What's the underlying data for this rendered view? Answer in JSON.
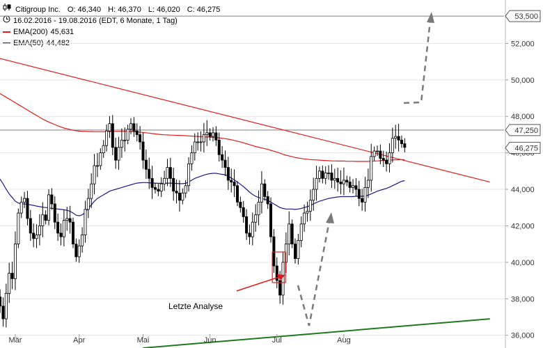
{
  "header": {
    "instrument": "Citigroup Inc.",
    "open_text": "O: 46,340",
    "high_text": "H: 46,370",
    "low_text": "L: 46,020",
    "close_text": "C: 46,275",
    "period_text": "16.02.2016 - 19.08.2016 (EDT, 6 Monate, 1 Tag)",
    "ema200_name": "EMA(200)",
    "ema200_value": "45,631",
    "ema50_name": "EMA(50)",
    "ema50_value": "44,482",
    "icons": [
      "candlestick-icon",
      "clock-icon"
    ]
  },
  "colors": {
    "ema200": "#e41b1b",
    "ema50": "#1a1a8c",
    "trendline_down": "#e41b1b",
    "trendline_up": "#1e7a1e",
    "arrow_dashed": "#7a7a7a",
    "highlight_box": "#e41b1b",
    "grid": "#e5e5e5",
    "hline": "#808080"
  },
  "chart_data": {
    "type": "candlestick",
    "x_tick_labels": [
      "Mär",
      "Apr",
      "Mai",
      "Jun",
      "Jul",
      "Aug"
    ],
    "x_tick_index": [
      8,
      29,
      50,
      72,
      94,
      116
    ],
    "y_tick_values": [
      36000,
      38000,
      40000,
      42000,
      44000,
      46000,
      48000,
      50000,
      52000
    ],
    "y_tick_labels": [
      "36,000",
      "38,000",
      "40,000",
      "42,000",
      "44,000",
      "46,000",
      "48,000",
      "50,000",
      "52,000"
    ],
    "ylim": [
      35300,
      54000
    ],
    "price_boxes": [
      {
        "label": "53,500",
        "value": 53500
      },
      {
        "label": "47,250",
        "value": 47250
      },
      {
        "label": "46,275",
        "value": 46275
      }
    ],
    "horizontal_lines": [
      53500,
      47250
    ],
    "close": [
      38.4,
      37.3,
      38.1,
      37.6,
      36.9,
      38.3,
      39.4,
      39.1,
      41.0,
      42.7,
      43.3,
      43.5,
      42.4,
      41.6,
      41.3,
      41.5,
      42.0,
      42.6,
      42.3,
      43.7,
      43.2,
      42.2,
      41.6,
      41.4,
      42.3,
      42.4,
      42.2,
      41.0,
      40.3,
      40.9,
      41.5,
      42.9,
      43.5,
      44.3,
      45.3,
      45.3,
      46.0,
      46.4,
      47.2,
      47.6,
      46.3,
      45.6,
      46.3,
      46.7,
      46.7,
      47.3,
      47.6,
      47.2,
      47.0,
      46.6,
      45.6,
      45.1,
      44.6,
      44.1,
      44.0,
      43.9,
      44.3,
      44.6,
      45.2,
      44.6,
      43.9,
      43.8,
      43.4,
      43.8,
      44.2,
      45.4,
      46.0,
      46.6,
      46.6,
      46.6,
      47.0,
      47.1,
      46.9,
      47.1,
      46.7,
      45.9,
      45.6,
      45.2,
      44.5,
      44.4,
      44.2,
      43.3,
      43.0,
      42.5,
      41.6,
      41.4,
      42.2,
      42.6,
      43.3,
      44.3,
      43.6,
      43.2,
      41.4,
      39.8,
      39.0,
      38.2,
      40.0,
      41.0,
      42.1,
      41.0,
      40.2,
      41.2,
      42.1,
      42.7,
      42.8,
      43.4,
      44.0,
      44.6,
      45.0,
      44.6,
      44.9,
      44.9,
      44.5,
      44.6,
      44.4,
      44.3,
      44.5,
      44.4,
      44.1,
      44.2,
      44.0,
      43.5,
      43.3,
      44.1,
      44.5,
      45.8,
      46.1,
      46.1,
      45.7,
      45.6,
      45.4,
      46.0,
      46.8,
      46.9,
      46.7,
      46.5,
      46.3
    ],
    "ema200": [
      49.55,
      49.45,
      49.35,
      49.25,
      49.15,
      49.05,
      48.95,
      48.85,
      48.75,
      48.65,
      48.55,
      48.45,
      48.35,
      48.25,
      48.15,
      48.05,
      47.95,
      47.85,
      47.77,
      47.69,
      47.62,
      47.55,
      47.48,
      47.42,
      47.36,
      47.32,
      47.28,
      47.24,
      47.21,
      47.19,
      47.18,
      47.18,
      47.17,
      47.17,
      47.16,
      47.16,
      47.16,
      47.16,
      47.17,
      47.17,
      47.17,
      47.18,
      47.18,
      47.18,
      47.18,
      47.18,
      47.17,
      47.16,
      47.15,
      47.14,
      47.12,
      47.1,
      47.08,
      47.06,
      47.04,
      47.02,
      47.0,
      46.99,
      46.98,
      46.97,
      46.97,
      46.96,
      46.96,
      46.95,
      46.94,
      46.93,
      46.92,
      46.91,
      46.9,
      46.89,
      46.88,
      46.87,
      46.86,
      46.85,
      46.84,
      46.82,
      46.8,
      46.78,
      46.75,
      46.72,
      46.68,
      46.64,
      46.6,
      46.55,
      46.5,
      46.45,
      46.4,
      46.35,
      46.31,
      46.27,
      46.23,
      46.19,
      46.14,
      46.09,
      46.04,
      45.98,
      45.92,
      45.87,
      45.83,
      45.79,
      45.75,
      45.72,
      45.69,
      45.67,
      45.65,
      45.63,
      45.62,
      45.61,
      45.6,
      45.59,
      45.58,
      45.57,
      45.56,
      45.56,
      45.55,
      45.55,
      45.55,
      45.54,
      45.54,
      45.54,
      45.53,
      45.53,
      45.53,
      45.53,
      45.53,
      45.54,
      45.55,
      45.56,
      45.57,
      45.58,
      45.59,
      45.6,
      45.61,
      45.62,
      45.62,
      45.63,
      45.63
    ],
    "ema50": [
      45.2,
      45.0,
      44.8,
      44.55,
      44.3,
      44.0,
      43.75,
      43.55,
      43.35,
      43.25,
      43.2,
      43.2,
      43.18,
      43.15,
      43.12,
      43.08,
      43.05,
      43.02,
      43.0,
      42.98,
      42.96,
      42.94,
      42.92,
      42.9,
      42.88,
      42.85,
      42.8,
      42.7,
      42.58,
      42.55,
      42.6,
      42.75,
      42.95,
      43.15,
      43.35,
      43.5,
      43.6,
      43.7,
      43.8,
      43.9,
      43.95,
      44.0,
      44.05,
      44.1,
      44.15,
      44.2,
      44.25,
      44.3,
      44.34,
      44.36,
      44.37,
      44.37,
      44.36,
      44.35,
      44.34,
      44.33,
      44.33,
      44.33,
      44.34,
      44.34,
      44.33,
      44.32,
      44.31,
      44.31,
      44.33,
      44.4,
      44.5,
      44.6,
      44.66,
      44.72,
      44.78,
      44.83,
      44.86,
      44.88,
      44.88,
      44.85,
      44.82,
      44.8,
      44.72,
      44.62,
      44.52,
      44.4,
      44.28,
      44.15,
      44.0,
      43.85,
      43.72,
      43.62,
      43.55,
      43.5,
      43.45,
      43.4,
      43.3,
      43.2,
      43.1,
      43.0,
      42.95,
      42.92,
      42.92,
      42.92,
      42.9,
      42.92,
      42.95,
      43.0,
      43.05,
      43.12,
      43.2,
      43.28,
      43.35,
      43.4,
      43.45,
      43.5,
      43.53,
      43.56,
      43.58,
      43.6,
      43.6,
      43.6,
      43.6,
      43.6,
      43.62,
      43.62,
      43.62,
      43.64,
      43.68,
      43.75,
      43.82,
      43.9,
      43.95,
      44.0,
      44.05,
      44.12,
      44.2,
      44.28,
      44.36,
      44.44,
      44.48
    ],
    "trendline_down": {
      "from": {
        "index": 0,
        "value": 51.3
      },
      "to": {
        "index": 164,
        "value": 44.4
      }
    },
    "trendline_up": {
      "from": {
        "index": 50,
        "value": 35.3
      },
      "to": {
        "index": 164,
        "value": 36.9
      }
    },
    "annotation_text": "Letzte Analyse",
    "highlight_bar_index": 95
  }
}
